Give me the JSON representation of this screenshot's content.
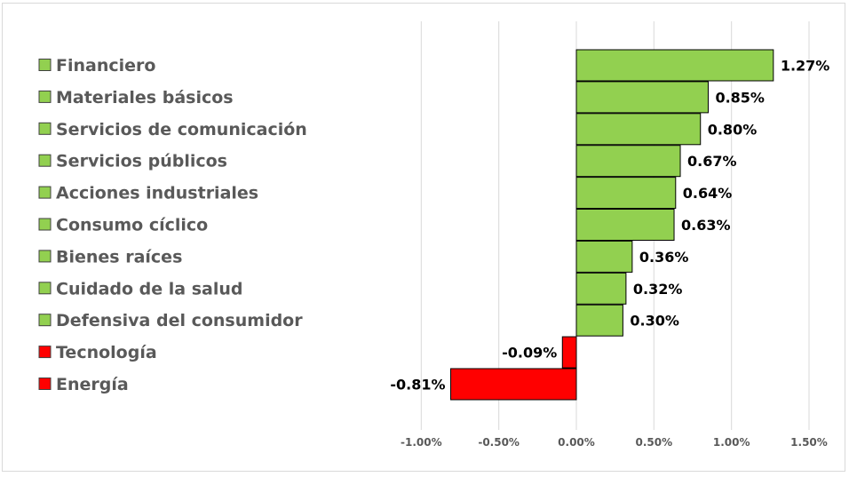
{
  "chart_data": {
    "type": "bar",
    "orientation": "horizontal",
    "title": "",
    "xlabel": "",
    "ylabel": "",
    "xlim": [
      -0.015,
      0.015
    ],
    "x_ticks": [
      {
        "value": -0.01,
        "label": "-1.00%"
      },
      {
        "value": -0.005,
        "label": "-0.50%"
      },
      {
        "value": 0,
        "label": "0.00%"
      },
      {
        "value": 0.005,
        "label": "0.50%"
      },
      {
        "value": 0.01,
        "label": "1.00%"
      },
      {
        "value": 0.015,
        "label": "1.50%"
      }
    ],
    "grid": "vertical",
    "legend_position": "left",
    "colors": {
      "positive": "#92d050",
      "negative": "#ff0000",
      "grid": "#d9d9d9",
      "text": "#595959",
      "label": "#000000"
    },
    "categories": [
      "Financiero",
      "Materiales básicos",
      "Servicios de comunicación",
      "Servicios públicos",
      "Acciones industriales",
      "Consumo cíclico",
      "Bienes raíces",
      "Cuidado de la salud",
      "Defensiva del consumidor",
      "Tecnología",
      "Energía"
    ],
    "values": [
      0.0127,
      0.0085,
      0.008,
      0.0067,
      0.0064,
      0.0063,
      0.0036,
      0.0032,
      0.003,
      -0.0009,
      -0.0081
    ],
    "data_labels": [
      "1.27%",
      "0.85%",
      "0.80%",
      "0.67%",
      "0.64%",
      "0.63%",
      "0.36%",
      "0.32%",
      "0.30%",
      "-0.09%",
      "-0.81%"
    ]
  }
}
